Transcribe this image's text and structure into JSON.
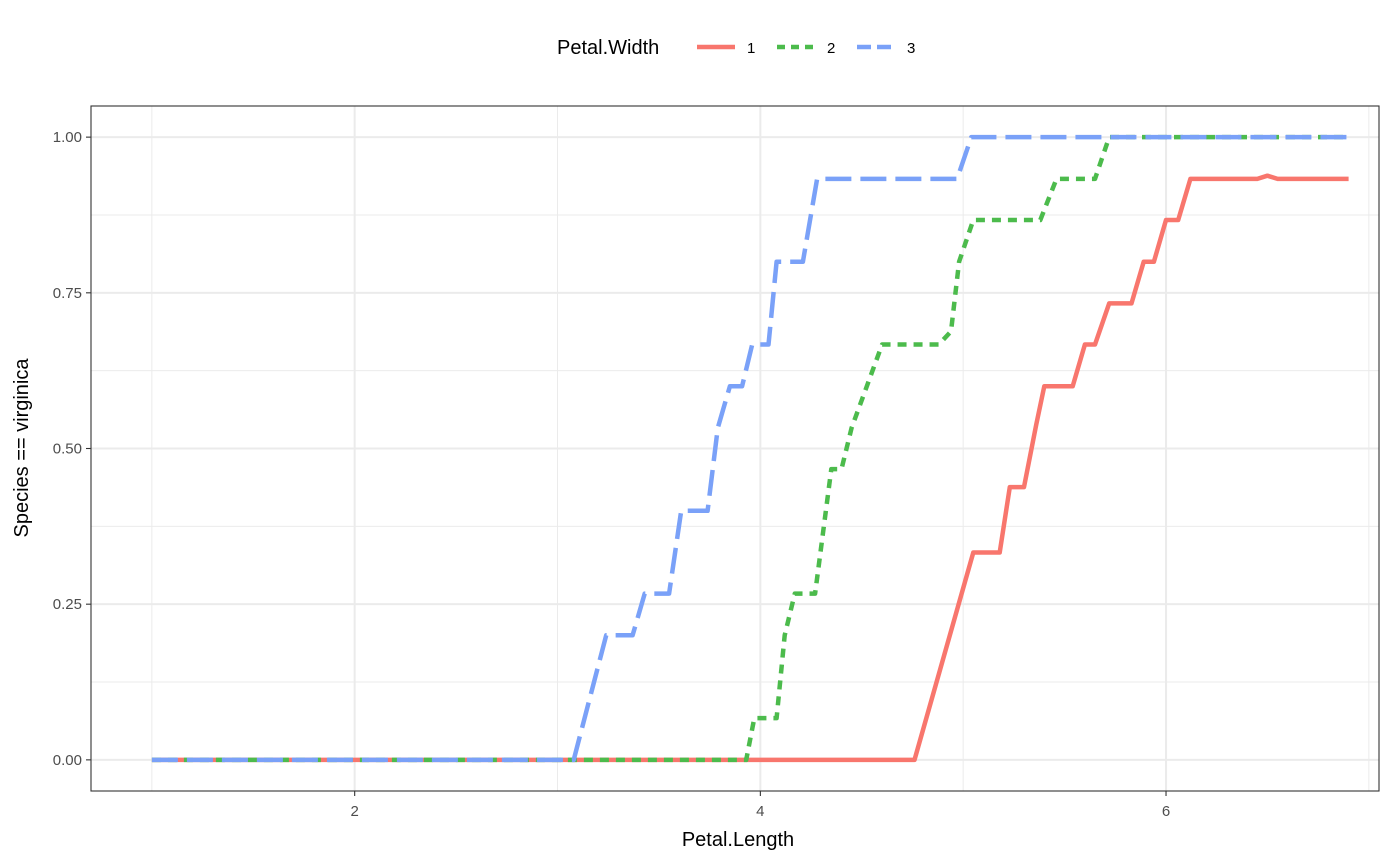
{
  "chart_data": {
    "type": "line",
    "xlabel": "Petal.Length",
    "ylabel": "Species == virginica",
    "xlim": [
      0.7,
      7.05
    ],
    "ylim": [
      -0.05,
      1.05
    ],
    "x_ticks": [
      2,
      4,
      6
    ],
    "x_tick_labels": [
      "2",
      "4",
      "6"
    ],
    "y_ticks": [
      0,
      0.25,
      0.5,
      0.75,
      1
    ],
    "y_tick_labels": [
      "0.00",
      "0.25",
      "0.50",
      "0.75",
      "1.00"
    ],
    "grid": true,
    "legend": {
      "title": "Petal.Width",
      "position": "top"
    },
    "series": [
      {
        "name": "1",
        "color": "#F8766D",
        "linetype": "solid",
        "points": [
          [
            1.0,
            0
          ],
          [
            4.76,
            0
          ],
          [
            5.05,
            0.333
          ],
          [
            5.18,
            0.333
          ],
          [
            5.23,
            0.438
          ],
          [
            5.3,
            0.438
          ],
          [
            5.36,
            0.538
          ],
          [
            5.4,
            0.6
          ],
          [
            5.54,
            0.6
          ],
          [
            5.6,
            0.667
          ],
          [
            5.65,
            0.667
          ],
          [
            5.72,
            0.733
          ],
          [
            5.83,
            0.733
          ],
          [
            5.89,
            0.8
          ],
          [
            5.94,
            0.8
          ],
          [
            6.0,
            0.867
          ],
          [
            6.06,
            0.867
          ],
          [
            6.12,
            0.933
          ],
          [
            6.45,
            0.933
          ],
          [
            6.5,
            0.938
          ],
          [
            6.55,
            0.933
          ],
          [
            6.9,
            0.933
          ]
        ]
      },
      {
        "name": "2",
        "color": "#4CBB4C",
        "linetype": "dotted",
        "points": [
          [
            1.0,
            0
          ],
          [
            3.93,
            0
          ],
          [
            3.97,
            0.067
          ],
          [
            4.08,
            0.067
          ],
          [
            4.12,
            0.2
          ],
          [
            4.17,
            0.267
          ],
          [
            4.27,
            0.267
          ],
          [
            4.35,
            0.467
          ],
          [
            4.4,
            0.467
          ],
          [
            4.45,
            0.533
          ],
          [
            4.6,
            0.667
          ],
          [
            4.88,
            0.667
          ],
          [
            4.94,
            0.688
          ],
          [
            4.98,
            0.8
          ],
          [
            5.05,
            0.867
          ],
          [
            5.38,
            0.867
          ],
          [
            5.46,
            0.933
          ],
          [
            5.65,
            0.933
          ],
          [
            5.72,
            1.0
          ],
          [
            6.9,
            1.0
          ]
        ]
      },
      {
        "name": "3",
        "color": "#7AA1F8",
        "linetype": "dashed",
        "points": [
          [
            1.0,
            0
          ],
          [
            3.08,
            0
          ],
          [
            3.24,
            0.2
          ],
          [
            3.37,
            0.2
          ],
          [
            3.43,
            0.267
          ],
          [
            3.55,
            0.267
          ],
          [
            3.61,
            0.4
          ],
          [
            3.74,
            0.4
          ],
          [
            3.79,
            0.533
          ],
          [
            3.85,
            0.6
          ],
          [
            3.91,
            0.6
          ],
          [
            3.96,
            0.667
          ],
          [
            4.04,
            0.667
          ],
          [
            4.08,
            0.8
          ],
          [
            4.21,
            0.8
          ],
          [
            4.28,
            0.933
          ],
          [
            4.97,
            0.933
          ],
          [
            5.04,
            1.0
          ],
          [
            6.9,
            1.0
          ]
        ]
      }
    ]
  }
}
